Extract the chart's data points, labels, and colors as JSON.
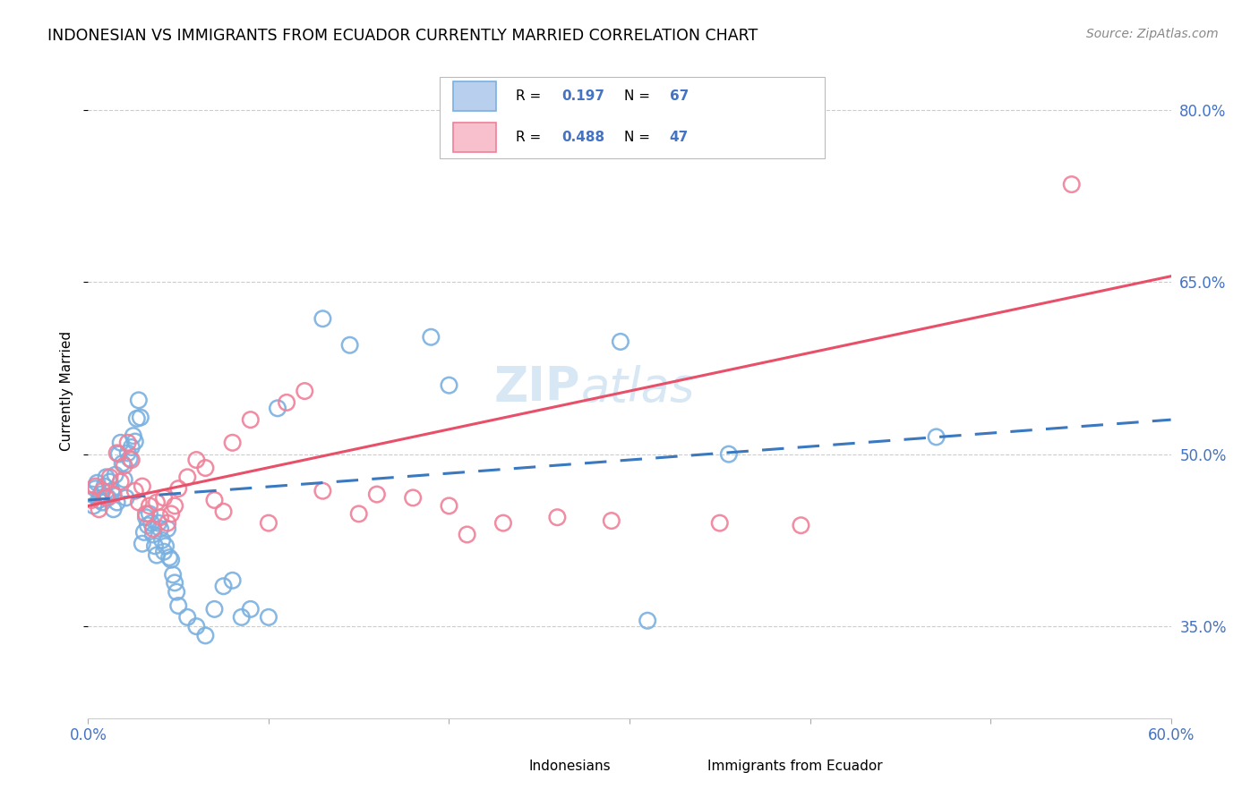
{
  "title": "INDONESIAN VS IMMIGRANTS FROM ECUADOR CURRENTLY MARRIED CORRELATION CHART",
  "source": "Source: ZipAtlas.com",
  "ylabel": "Currently Married",
  "ytick_vals": [
    0.35,
    0.5,
    0.65,
    0.8
  ],
  "ytick_labels": [
    "35.0%",
    "50.0%",
    "65.0%",
    "80.0%"
  ],
  "xtick_vals": [
    0.0,
    0.1,
    0.2,
    0.3,
    0.4,
    0.5,
    0.6
  ],
  "xtick_labels": [
    "0.0%",
    "",
    "",
    "",
    "",
    "",
    "60.0%"
  ],
  "xlim": [
    0.0,
    0.6
  ],
  "ylim": [
    0.27,
    0.84
  ],
  "indonesian_line": {
    "x0": 0.0,
    "y0": 0.46,
    "x1": 0.6,
    "y1": 0.53
  },
  "ecuador_line": {
    "x0": 0.0,
    "y0": 0.455,
    "x1": 0.6,
    "y1": 0.655
  },
  "blue_scatter_color": "#7ab0e0",
  "pink_scatter_color": "#f08098",
  "blue_line_color": "#3a78c0",
  "pink_line_color": "#e8506a",
  "tick_color": "#4472c4",
  "grid_color": "#cccccc",
  "title_fontsize": 12.5,
  "label_fontsize": 11,
  "tick_fontsize": 12,
  "source_fontsize": 10,
  "watermark_text": "ZIPatlas",
  "watermark_color": "#c8ddf0",
  "R_ind": "0.197",
  "N_ind": "67",
  "R_ecu": "0.488",
  "N_ecu": "47",
  "legend_blue_face": "#b8d0ee",
  "legend_pink_face": "#f8c0cc",
  "indonesian_x": [
    0.002,
    0.003,
    0.004,
    0.005,
    0.006,
    0.007,
    0.008,
    0.009,
    0.01,
    0.011,
    0.012,
    0.013,
    0.014,
    0.015,
    0.016,
    0.017,
    0.018,
    0.019,
    0.02,
    0.021,
    0.022,
    0.023,
    0.024,
    0.025,
    0.026,
    0.027,
    0.028,
    0.029,
    0.03,
    0.031,
    0.032,
    0.033,
    0.034,
    0.035,
    0.036,
    0.037,
    0.038,
    0.039,
    0.04,
    0.041,
    0.042,
    0.043,
    0.044,
    0.045,
    0.046,
    0.047,
    0.048,
    0.049,
    0.05,
    0.055,
    0.06,
    0.065,
    0.07,
    0.075,
    0.08,
    0.085,
    0.09,
    0.1,
    0.105,
    0.13,
    0.145,
    0.19,
    0.2,
    0.295,
    0.31,
    0.355,
    0.47
  ],
  "indonesian_y": [
    0.465,
    0.455,
    0.47,
    0.475,
    0.46,
    0.465,
    0.458,
    0.472,
    0.48,
    0.462,
    0.476,
    0.468,
    0.452,
    0.482,
    0.458,
    0.5,
    0.51,
    0.492,
    0.478,
    0.462,
    0.501,
    0.496,
    0.506,
    0.516,
    0.511,
    0.531,
    0.547,
    0.532,
    0.422,
    0.432,
    0.445,
    0.438,
    0.448,
    0.44,
    0.43,
    0.42,
    0.412,
    0.44,
    0.435,
    0.425,
    0.415,
    0.42,
    0.435,
    0.41,
    0.408,
    0.395,
    0.388,
    0.38,
    0.368,
    0.358,
    0.35,
    0.342,
    0.365,
    0.385,
    0.39,
    0.358,
    0.365,
    0.358,
    0.54,
    0.618,
    0.595,
    0.602,
    0.56,
    0.598,
    0.355,
    0.5,
    0.515
  ],
  "ecuador_x": [
    0.002,
    0.004,
    0.006,
    0.008,
    0.01,
    0.012,
    0.014,
    0.016,
    0.018,
    0.02,
    0.022,
    0.024,
    0.026,
    0.028,
    0.03,
    0.032,
    0.034,
    0.036,
    0.038,
    0.04,
    0.042,
    0.044,
    0.046,
    0.048,
    0.05,
    0.055,
    0.06,
    0.065,
    0.07,
    0.075,
    0.08,
    0.09,
    0.1,
    0.11,
    0.12,
    0.13,
    0.15,
    0.16,
    0.18,
    0.2,
    0.21,
    0.23,
    0.26,
    0.29,
    0.35,
    0.395,
    0.545
  ],
  "ecuador_y": [
    0.46,
    0.472,
    0.452,
    0.468,
    0.462,
    0.48,
    0.465,
    0.501,
    0.476,
    0.49,
    0.51,
    0.495,
    0.468,
    0.458,
    0.472,
    0.448,
    0.455,
    0.435,
    0.458,
    0.445,
    0.462,
    0.44,
    0.448,
    0.455,
    0.47,
    0.48,
    0.495,
    0.488,
    0.46,
    0.45,
    0.51,
    0.53,
    0.44,
    0.545,
    0.555,
    0.468,
    0.448,
    0.465,
    0.462,
    0.455,
    0.43,
    0.44,
    0.445,
    0.442,
    0.44,
    0.438,
    0.735
  ]
}
